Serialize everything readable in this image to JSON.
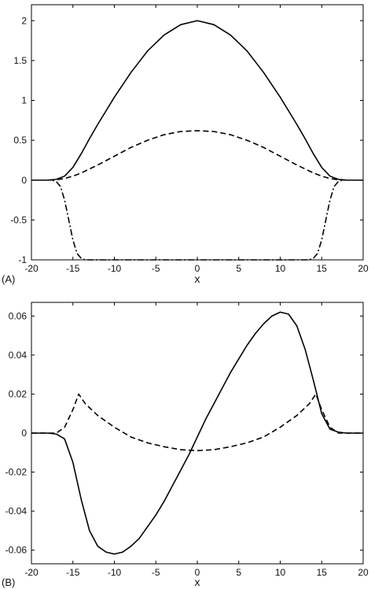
{
  "figure": {
    "panels": [
      {
        "panel_label": "(A)",
        "chart_data": {
          "type": "line",
          "title": "",
          "xlabel": "x",
          "ylabel": "",
          "xlim": [
            -20,
            20
          ],
          "ylim": [
            -1,
            2.2
          ],
          "xticks": [
            "-20",
            "-15",
            "-10",
            "-5",
            "0",
            "5",
            "10",
            "15",
            "20"
          ],
          "yticks": [
            "-1",
            "-0.5",
            "0",
            "0.5",
            "1",
            "1.5",
            "2"
          ],
          "grid": false,
          "series": [
            {
              "style": "solid",
              "x": [
                -20,
                -18,
                -17,
                -16,
                -15,
                -14,
                -13,
                -12,
                -10,
                -8,
                -6,
                -4,
                -2,
                0,
                2,
                4,
                6,
                8,
                10,
                12,
                13,
                14,
                15,
                16,
                17,
                18,
                20
              ],
              "y": [
                0,
                0,
                0.01,
                0.05,
                0.16,
                0.33,
                0.52,
                0.7,
                1.04,
                1.35,
                1.62,
                1.82,
                1.95,
                2.0,
                1.95,
                1.82,
                1.62,
                1.35,
                1.04,
                0.7,
                0.52,
                0.33,
                0.16,
                0.05,
                0.01,
                0,
                0
              ]
            },
            {
              "style": "dashed",
              "x": [
                -20,
                -18,
                -17,
                -16,
                -15,
                -14,
                -12,
                -10,
                -8,
                -6,
                -4,
                -2,
                0,
                2,
                4,
                6,
                8,
                10,
                12,
                14,
                15,
                16,
                17,
                18,
                20
              ],
              "y": [
                0,
                0,
                0.005,
                0.02,
                0.05,
                0.09,
                0.19,
                0.3,
                0.41,
                0.5,
                0.57,
                0.61,
                0.62,
                0.61,
                0.57,
                0.5,
                0.41,
                0.3,
                0.19,
                0.09,
                0.05,
                0.02,
                0.005,
                0,
                0
              ]
            },
            {
              "style": "dashdot",
              "x": [
                -20,
                -17.5,
                -17,
                -16.5,
                -16,
                -15.5,
                -15,
                -14.5,
                -14,
                -13.5,
                -13,
                13,
                13.5,
                14,
                14.5,
                15,
                15.5,
                16,
                16.5,
                17,
                17.5,
                20
              ],
              "y": [
                0,
                0,
                -0.02,
                -0.08,
                -0.25,
                -0.5,
                -0.75,
                -0.92,
                -0.98,
                -1,
                -1,
                -1,
                -1,
                -0.98,
                -0.92,
                -0.75,
                -0.5,
                -0.25,
                -0.08,
                -0.02,
                0,
                0
              ]
            }
          ]
        }
      },
      {
        "panel_label": "(B)",
        "chart_data": {
          "type": "line",
          "title": "",
          "xlabel": "x",
          "ylabel": "",
          "xlim": [
            -20,
            20
          ],
          "ylim": [
            -0.067,
            0.067
          ],
          "xticks": [
            "-20",
            "-15",
            "-10",
            "-5",
            "0",
            "5",
            "10",
            "15",
            "20"
          ],
          "yticks": [
            "-0.06",
            "-0.04",
            "-0.02",
            "0",
            "0.02",
            "0.04",
            "0.06"
          ],
          "grid": false,
          "series": [
            {
              "style": "solid",
              "x": [
                -20,
                -18,
                -17,
                -16,
                -15,
                -14,
                -13,
                -12,
                -11,
                -10,
                -9,
                -8,
                -7,
                -6,
                -5,
                -4,
                -3,
                -2,
                -1,
                0,
                1,
                2,
                3,
                4,
                5,
                6,
                7,
                8,
                9,
                10,
                11,
                12,
                13,
                14,
                15,
                16,
                17,
                18,
                20
              ],
              "y": [
                0,
                0,
                -0.0005,
                -0.003,
                -0.015,
                -0.034,
                -0.05,
                -0.058,
                -0.061,
                -0.062,
                -0.061,
                -0.058,
                -0.054,
                -0.048,
                -0.042,
                -0.035,
                -0.027,
                -0.019,
                -0.011,
                -0.002,
                0.007,
                0.015,
                0.023,
                0.031,
                0.038,
                0.045,
                0.051,
                0.056,
                0.06,
                0.062,
                0.061,
                0.055,
                0.043,
                0.027,
                0.01,
                0.002,
                0.0005,
                0,
                0
              ]
            },
            {
              "style": "dashed",
              "x": [
                -20,
                -17,
                -16,
                -15,
                -14.3,
                -13.5,
                -12,
                -10,
                -8,
                -6,
                -4,
                -2,
                0,
                2,
                4,
                6,
                8,
                10,
                12,
                13.5,
                14.3,
                15,
                16,
                17,
                20
              ],
              "y": [
                0,
                0,
                0.003,
                0.012,
                0.02,
                0.015,
                0.009,
                0.003,
                -0.002,
                -0.005,
                -0.007,
                -0.0085,
                -0.009,
                -0.0085,
                -0.007,
                -0.005,
                -0.002,
                0.003,
                0.009,
                0.015,
                0.02,
                0.012,
                0.003,
                0,
                0
              ]
            }
          ]
        }
      }
    ]
  }
}
